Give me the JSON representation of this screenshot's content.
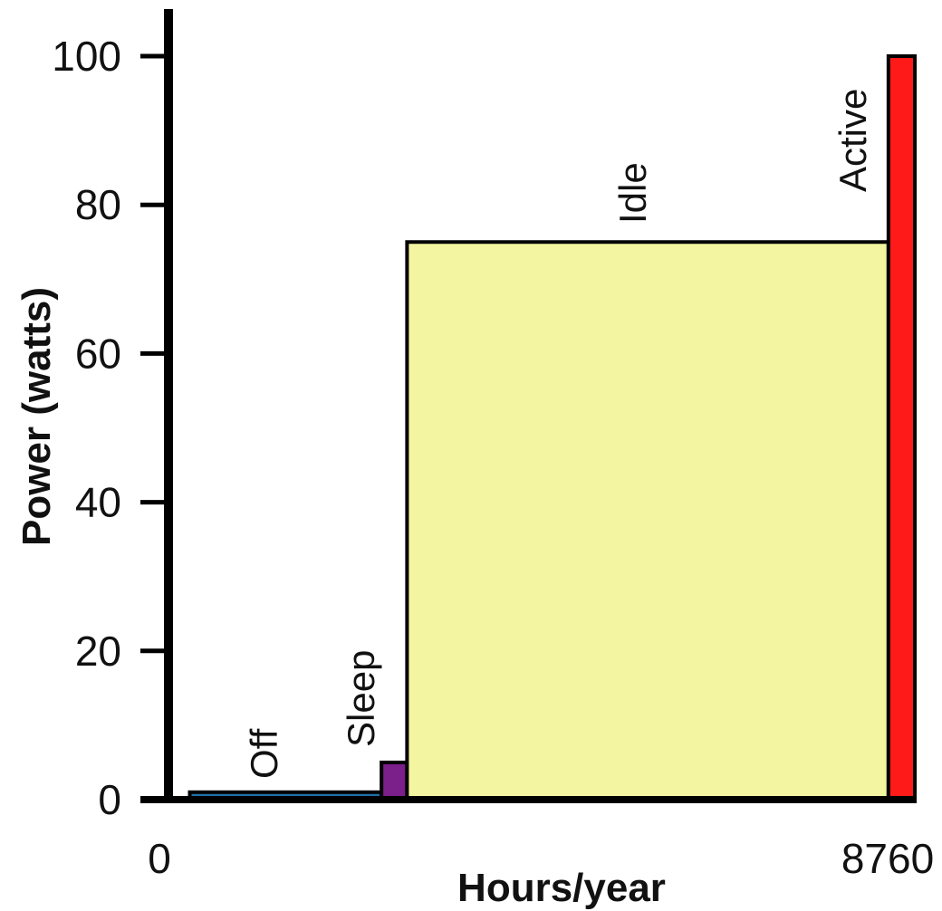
{
  "chart_data": {
    "type": "bar",
    "title": "",
    "xlabel": "Hours/year",
    "ylabel": "Power (watts)",
    "xlim": [
      0,
      8760
    ],
    "ylim": [
      0,
      100
    ],
    "x_ticks": [
      "0",
      "8760"
    ],
    "y_ticks": [
      0,
      20,
      40,
      60,
      80,
      100
    ],
    "grid": false,
    "segments": [
      {
        "label": "Off",
        "x_start": 250,
        "x_end": 2500,
        "power": 1,
        "color": "#1f6fa8"
      },
      {
        "label": "Sleep",
        "x_start": 2500,
        "x_end": 2800,
        "power": 5,
        "color": "#7b1f8a"
      },
      {
        "label": "Idle",
        "x_start": 2800,
        "x_end": 8450,
        "power": 75,
        "color": "#f4f5a0"
      },
      {
        "label": "Active",
        "x_start": 8450,
        "x_end": 8760,
        "power": 100,
        "color": "#ff1a1a"
      }
    ]
  }
}
